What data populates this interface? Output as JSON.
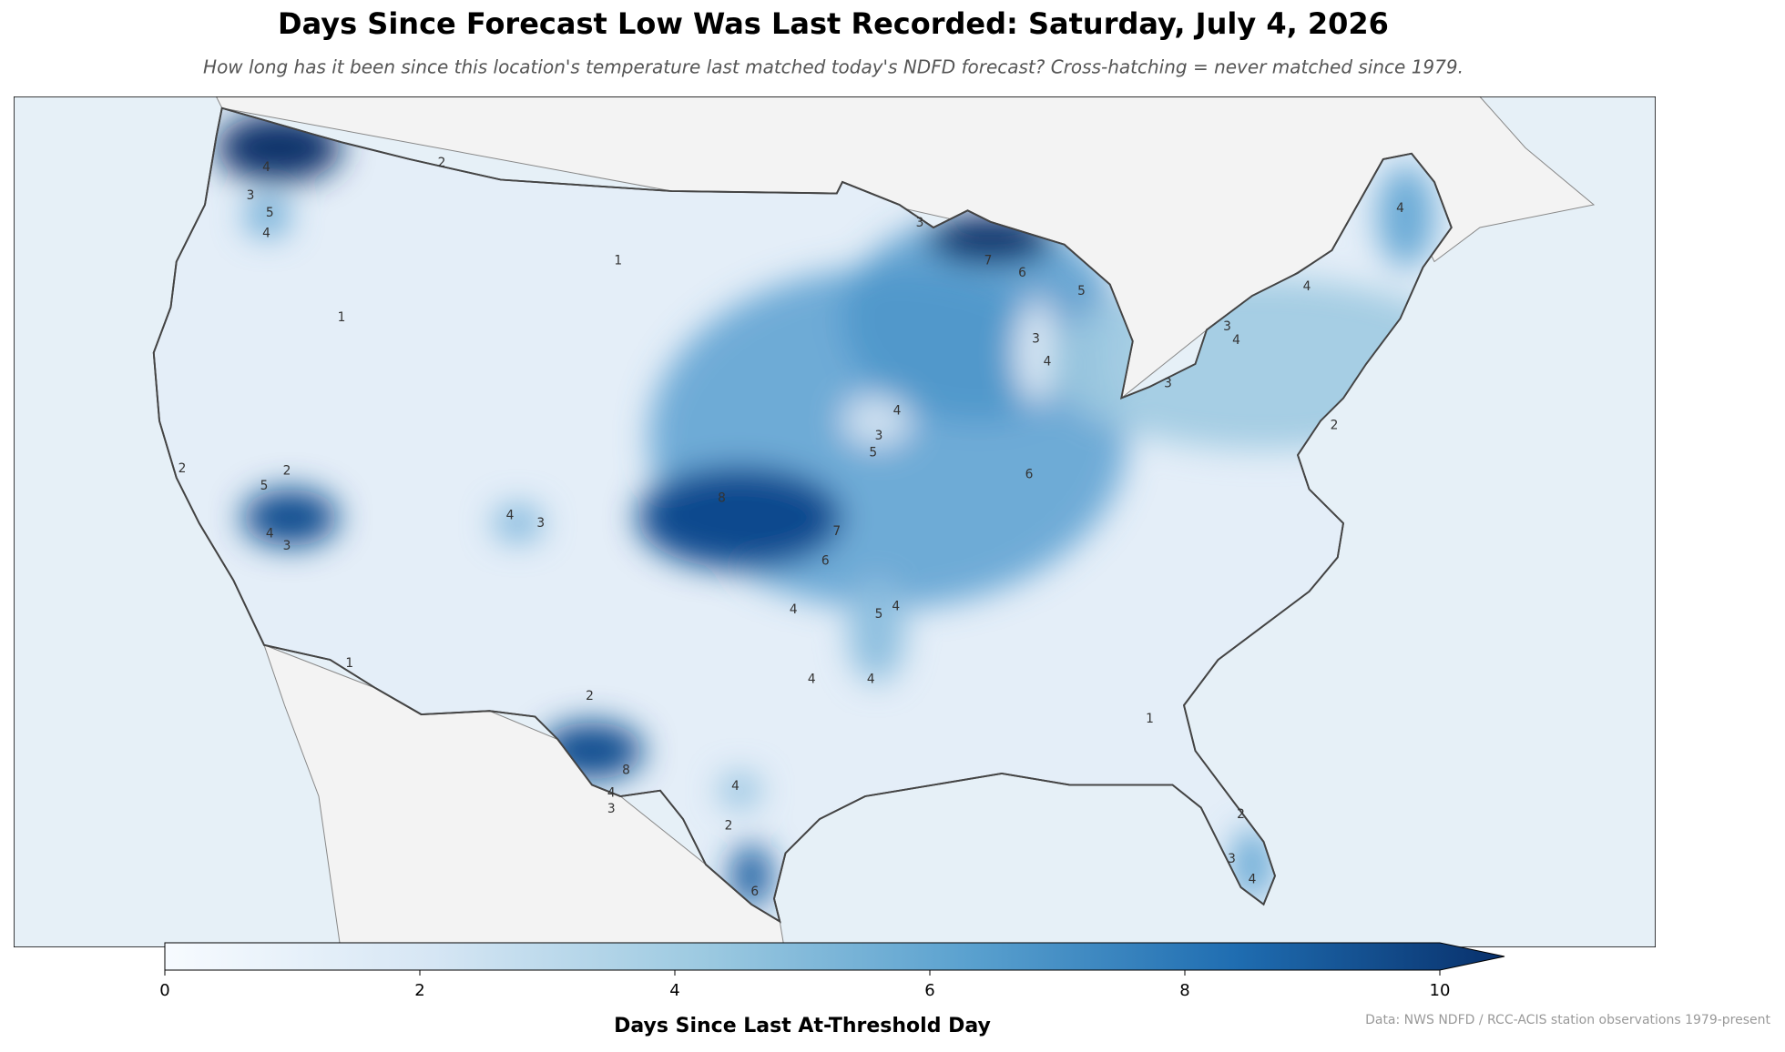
{
  "title": "Days Since Forecast Low Was Last Recorded: Saturday, July 4, 2026",
  "subtitle": "How long has it been since this location's temperature last matched today's NDFD forecast? Cross-hatching = never matched since 1979.",
  "map": {
    "contour_labels": [
      1,
      1,
      2,
      2,
      5,
      4,
      3,
      4,
      3,
      8,
      7,
      6,
      4,
      5,
      4,
      4,
      4,
      3,
      4,
      5,
      6,
      3,
      4,
      5,
      6,
      7,
      3,
      4,
      4,
      3,
      4,
      3,
      2,
      1,
      1,
      2,
      8,
      4,
      3,
      4,
      2,
      6,
      3,
      4,
      2,
      2,
      4,
      3,
      5,
      4
    ]
  },
  "colorbar": {
    "label": "Days Since Last At-Threshold Day",
    "lim": [
      0,
      10
    ],
    "ticks": [
      0,
      2,
      4,
      6,
      8,
      10
    ]
  },
  "source": "Data: NWS NDFD / RCC-ACIS station observations 1979-present"
}
